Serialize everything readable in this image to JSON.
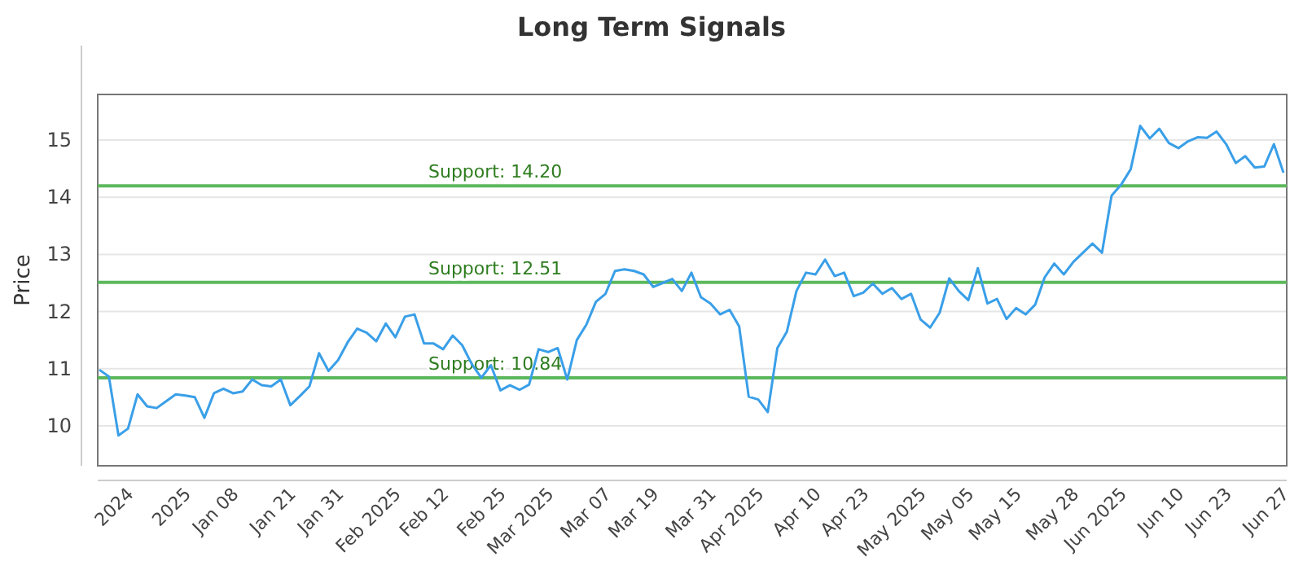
{
  "chart_data": {
    "type": "line",
    "title": "Long Term Signals",
    "ylabel": "Price",
    "categories": [
      null,
      null,
      null,
      "2024",
      null,
      null,
      null,
      null,
      null,
      "2025",
      null,
      null,
      null,
      null,
      "Jan 08",
      null,
      null,
      null,
      null,
      null,
      "Jan 21",
      null,
      null,
      null,
      null,
      "Jan 31",
      null,
      null,
      null,
      null,
      null,
      "Feb 2025",
      null,
      null,
      null,
      null,
      "Feb 12",
      null,
      null,
      null,
      null,
      null,
      "Feb 25",
      null,
      null,
      null,
      null,
      "Mar 2025",
      null,
      null,
      null,
      null,
      null,
      "Mar 07",
      null,
      null,
      null,
      null,
      "Mar 19",
      null,
      null,
      null,
      null,
      null,
      "Mar 31",
      null,
      null,
      null,
      null,
      "Apr 2025",
      null,
      null,
      null,
      null,
      null,
      "Apr 10",
      null,
      null,
      null,
      null,
      "Apr 23",
      null,
      null,
      null,
      null,
      null,
      "May 2025",
      null,
      null,
      null,
      null,
      "May 05",
      null,
      null,
      null,
      null,
      "May 15",
      null,
      null,
      null,
      null,
      null,
      "May 28",
      null,
      null,
      null,
      null,
      "Jun 2025",
      null,
      null,
      null,
      null,
      null,
      "Jun 10",
      null,
      null,
      null,
      null,
      "Jun 23",
      null,
      null,
      null,
      null,
      null,
      "Jun 27"
    ],
    "series": [
      {
        "color": "#3a9fe8",
        "values": [
          10.98,
          10.86,
          9.83,
          9.95,
          10.55,
          10.34,
          10.31,
          10.43,
          10.55,
          10.53,
          10.5,
          10.14,
          10.57,
          10.65,
          10.57,
          10.6,
          10.81,
          10.71,
          10.69,
          10.81,
          10.36,
          10.52,
          10.69,
          11.27,
          10.96,
          11.15,
          11.46,
          11.7,
          11.63,
          11.48,
          11.79,
          11.55,
          11.91,
          11.95,
          11.44,
          11.44,
          11.34,
          11.58,
          11.41,
          11.08,
          10.84,
          11.06,
          10.62,
          10.71,
          10.63,
          10.72,
          11.34,
          11.29,
          11.36,
          10.81,
          11.5,
          11.77,
          12.17,
          12.31,
          12.71,
          12.74,
          12.71,
          12.65,
          12.43,
          12.5,
          12.57,
          12.36,
          12.68,
          12.25,
          12.14,
          11.95,
          12.03,
          11.74,
          10.51,
          10.46,
          10.24,
          11.36,
          11.65,
          12.36,
          12.68,
          12.65,
          12.91,
          12.62,
          12.68,
          12.27,
          12.33,
          12.49,
          12.31,
          12.41,
          12.22,
          12.31,
          11.86,
          11.72,
          11.98,
          12.58,
          12.36,
          12.2,
          12.76,
          12.14,
          12.22,
          11.87,
          12.06,
          11.95,
          12.12,
          12.6,
          12.84,
          12.65,
          12.87,
          13.03,
          13.19,
          13.03,
          14.03,
          14.22,
          14.49,
          15.25,
          15.03,
          15.2,
          14.95,
          14.86,
          14.98,
          15.05,
          15.04,
          15.15,
          14.93,
          14.6,
          14.72,
          14.52,
          14.54,
          14.93,
          14.43
        ]
      }
    ],
    "ylim": [
      9.3,
      15.8
    ],
    "yticks": [
      10,
      11,
      12,
      13,
      14,
      15
    ],
    "grid": "y",
    "ref_lines": [
      {
        "axis": "y",
        "value": 14.2,
        "label": "Support: 14.20",
        "color": "#5cb85c"
      },
      {
        "axis": "y",
        "value": 12.51,
        "label": "Support: 12.51",
        "color": "#5cb85c"
      },
      {
        "axis": "y",
        "value": 10.84,
        "label": "Support: 10.84",
        "color": "#5cb85c"
      }
    ]
  }
}
